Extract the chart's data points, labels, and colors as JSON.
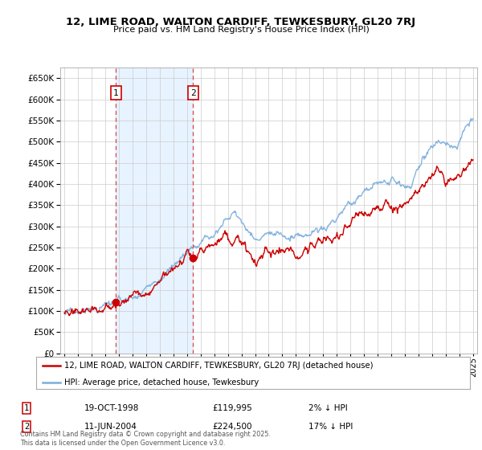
{
  "title": "12, LIME ROAD, WALTON CARDIFF, TEWKESBURY, GL20 7RJ",
  "subtitle": "Price paid vs. HM Land Registry's House Price Index (HPI)",
  "ytick_vals": [
    0,
    50000,
    100000,
    150000,
    200000,
    250000,
    300000,
    350000,
    400000,
    450000,
    500000,
    550000,
    600000,
    650000
  ],
  "ylim": [
    0,
    675000
  ],
  "purchase1": {
    "date_num": 1998.79,
    "price": 119995,
    "label": "1",
    "text": "19-OCT-1998",
    "amount": "£119,995",
    "hpi_diff": "2% ↓ HPI"
  },
  "purchase2": {
    "date_num": 2004.44,
    "price": 224500,
    "label": "2",
    "text": "11-JUN-2004",
    "amount": "£224,500",
    "hpi_diff": "17% ↓ HPI"
  },
  "legend_house": "12, LIME ROAD, WALTON CARDIFF, TEWKESBURY, GL20 7RJ (detached house)",
  "legend_hpi": "HPI: Average price, detached house, Tewkesbury",
  "footnote": "Contains HM Land Registry data © Crown copyright and database right 2025.\nThis data is licensed under the Open Government Licence v3.0.",
  "line_color_house": "#cc0000",
  "line_color_hpi": "#7aaddc",
  "background_color": "#ffffff",
  "grid_color": "#cccccc",
  "highlight_fill": "#ddeeff",
  "xlim_left": 1994.7,
  "xlim_right": 2025.3
}
